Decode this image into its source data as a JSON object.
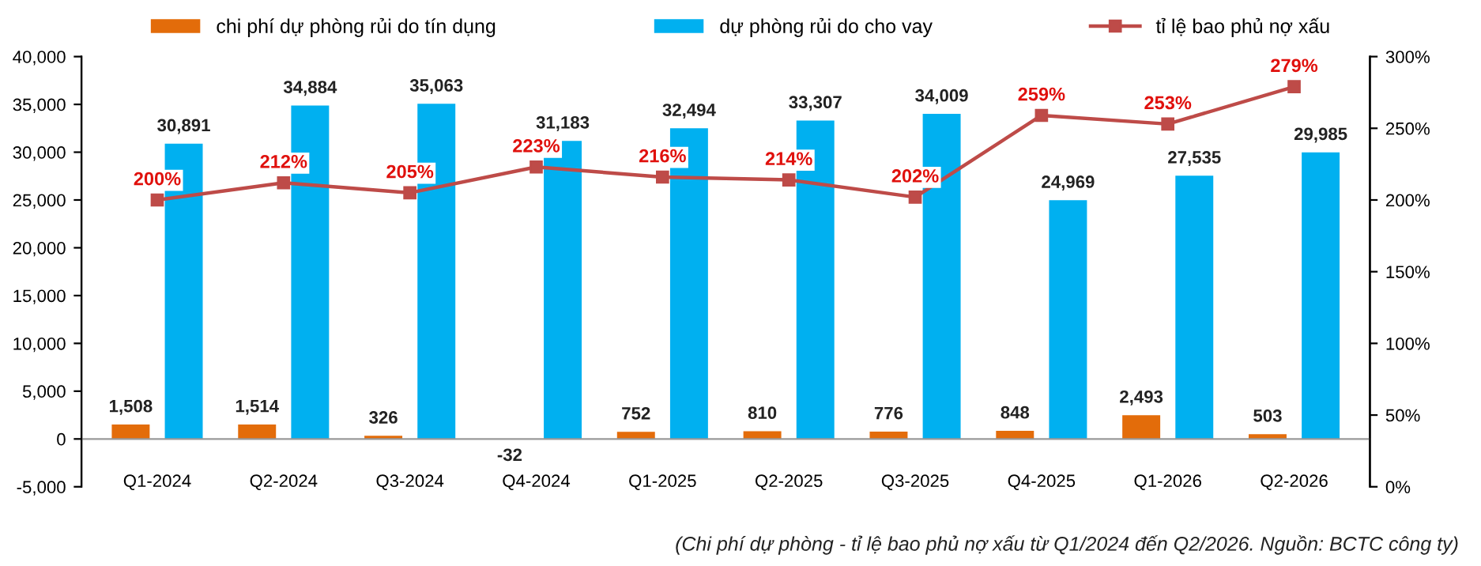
{
  "chart_data": {
    "type": "bar",
    "categories": [
      "Q1-2024",
      "Q2-2024",
      "Q3-2024",
      "Q4-2024",
      "Q1-2025",
      "Q2-2025",
      "Q3-2025",
      "Q4-2025",
      "Q1-2026",
      "Q2-2026"
    ],
    "series": [
      {
        "name": "chi phí dự phòng rủi do tín dụng",
        "color": "#e36c0a",
        "values": [
          1508,
          1514,
          326,
          -32,
          752,
          810,
          776,
          848,
          2493,
          503
        ],
        "value_labels": [
          "1,508",
          "1,514",
          "326",
          "-32",
          "752",
          "810",
          "776",
          "848",
          "2,493",
          "503"
        ]
      },
      {
        "name": "dự phòng rủi do cho vay",
        "color": "#00b0f0",
        "values": [
          30891,
          34884,
          35063,
          31183,
          32494,
          33307,
          34009,
          24969,
          27535,
          29985
        ],
        "value_labels": [
          "30,891",
          "34,884",
          "35,063",
          "31,183",
          "32,494",
          "33,307",
          "34,009",
          "24,969",
          "27,535",
          "29,985"
        ]
      },
      {
        "name": "tỉ lệ bao phủ nợ xấu",
        "type": "line",
        "axis": "y2",
        "color": "#be4b48",
        "marker": "square",
        "values": [
          200,
          212,
          205,
          223,
          216,
          214,
          202,
          259,
          253,
          279
        ],
        "value_labels": [
          "200%",
          "212%",
          "205%",
          "223%",
          "216%",
          "214%",
          "202%",
          "259%",
          "253%",
          "279%"
        ]
      }
    ],
    "ylim": [
      -5000,
      40000
    ],
    "yticks": [
      {
        "value": -5000,
        "label": "-5,000"
      },
      0,
      {
        "value": 5000,
        "label": "5,000"
      },
      {
        "value": 10000,
        "label": "10,000"
      },
      {
        "value": 15000,
        "label": "15,000"
      },
      {
        "value": 20000,
        "label": "20,000"
      },
      {
        "value": 25000,
        "label": "25,000"
      },
      {
        "value": 30000,
        "label": "30,000"
      },
      {
        "value": 35000,
        "label": "35,000"
      },
      {
        "value": 40000,
        "label": "40,000"
      }
    ],
    "y2lim": [
      0,
      300
    ],
    "y2ticks": [
      {
        "value": 0,
        "label": "0%"
      },
      {
        "value": 50,
        "label": "50%"
      },
      {
        "value": 100,
        "label": "100%"
      },
      {
        "value": 150,
        "label": "150%"
      },
      {
        "value": 200,
        "label": "200%"
      },
      {
        "value": 250,
        "label": "250%"
      },
      {
        "value": 300,
        "label": "300%"
      }
    ],
    "legend": "top",
    "grid": false,
    "annotations": [
      "(Chi phí dự phòng - tỉ lệ bao phủ nợ xấu từ Q1/2024 đến Q2/2026. Nguồn: BCTC công ty)"
    ]
  }
}
